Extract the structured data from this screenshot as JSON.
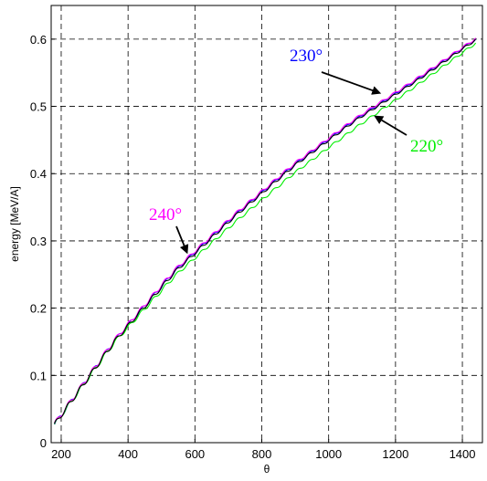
{
  "chart_data": {
    "type": "line",
    "title": "",
    "xlabel": "θ",
    "ylabel": "energy [MeV/A]",
    "xlim": [
      170,
      1460
    ],
    "ylim": [
      0,
      0.65
    ],
    "xticks": [
      200,
      400,
      600,
      800,
      1000,
      1200,
      1400
    ],
    "xtick_labels": [
      "200",
      "400",
      "600",
      "800",
      "1000",
      "1200",
      "1400"
    ],
    "yticks": [
      0,
      0.1,
      0.2,
      0.3,
      0.4,
      0.5,
      0.6
    ],
    "ytick_labels": [
      "0",
      "0.1",
      "0.2",
      "0.3",
      "0.4",
      "0.5",
      "0.6"
    ],
    "grid": true,
    "grid_style": "dashed",
    "legend": "none",
    "x_range": [
      180,
      1440
    ],
    "staircase_period": 36,
    "series": [
      {
        "name": "230°",
        "color": "#0000ff",
        "x": [
          180,
          360,
          540,
          720,
          900,
          1080,
          1260,
          1440
        ],
        "y": [
          0.027,
          0.152,
          0.255,
          0.338,
          0.414,
          0.48,
          0.538,
          0.6
        ]
      },
      {
        "name": "220°",
        "color": "#00ee00",
        "x": [
          180,
          360,
          540,
          720,
          900,
          1080,
          1260,
          1440
        ],
        "y": [
          0.027,
          0.15,
          0.248,
          0.328,
          0.402,
          0.468,
          0.53,
          0.594
        ]
      },
      {
        "name": "240°",
        "color": "#ff00ff",
        "x": [
          180,
          360,
          540,
          720,
          900,
          1080,
          1260,
          1440
        ],
        "y": [
          0.028,
          0.153,
          0.257,
          0.34,
          0.416,
          0.482,
          0.54,
          0.601
        ]
      },
      {
        "name": "",
        "color": "#000000",
        "x": [
          180,
          360,
          540,
          720,
          900,
          1080,
          1260,
          1440
        ],
        "y": [
          0.027,
          0.151,
          0.254,
          0.337,
          0.413,
          0.479,
          0.537,
          0.599
        ]
      }
    ],
    "annotations": [
      {
        "text": "230°",
        "color": "#0000ff",
        "arrow_to": {
          "x": 1152,
          "y": 0.52
        }
      },
      {
        "text": "220°",
        "color": "#00ee00",
        "arrow_to": {
          "x": 1140,
          "y": 0.485
        }
      },
      {
        "text": "240°",
        "color": "#ff00ff",
        "arrow_to": {
          "x": 576,
          "y": 0.283
        }
      }
    ]
  }
}
